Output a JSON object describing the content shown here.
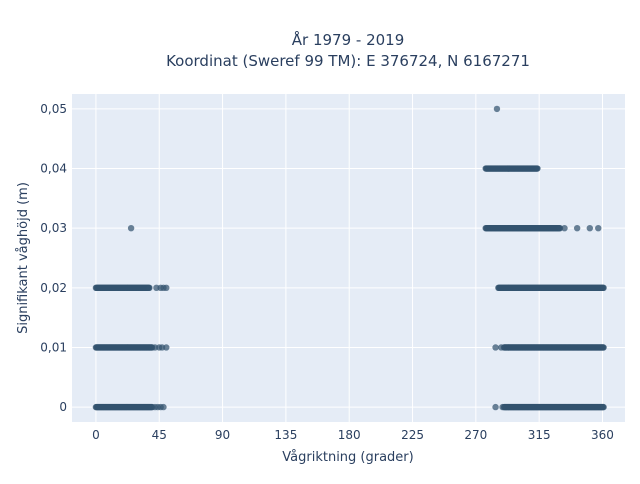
{
  "chart_data": {
    "type": "scatter",
    "title_line1": "År 1979 - 2019",
    "title_line2": "Koordinat (Sweref 99 TM): E 376724, N 6167271",
    "xlabel": "Vågriktning (grader)",
    "ylabel": "Signifikant våghöjd (m)",
    "xlim": [
      -17,
      376
    ],
    "ylim": [
      -0.0025,
      0.0525
    ],
    "x_ticks": [
      0,
      45,
      90,
      135,
      180,
      225,
      270,
      315,
      360
    ],
    "x_tick_labels": [
      "0",
      "45",
      "90",
      "135",
      "180",
      "225",
      "270",
      "315",
      "360"
    ],
    "y_ticks": [
      0,
      0.01,
      0.02,
      0.03,
      0.04,
      0.05
    ],
    "y_tick_labels": [
      "0",
      "0,01",
      "0,02",
      "0,03",
      "0,04",
      "0,05"
    ],
    "grid": true,
    "marker_color": "#33536f",
    "background_color": "#e5ecf6",
    "segments": [
      {
        "y": 0.0,
        "x_start": 0,
        "x_end": 40,
        "sparse": [
          42,
          44,
          46,
          48
        ]
      },
      {
        "y": 0.01,
        "x_start": 0,
        "x_end": 40,
        "sparse": [
          42,
          45,
          47,
          50
        ]
      },
      {
        "y": 0.02,
        "x_start": 0,
        "x_end": 38,
        "sparse": [
          43,
          46,
          48,
          50
        ]
      },
      {
        "y": 0.0,
        "x_start": 290,
        "x_end": 361,
        "sparse": [
          284,
          289
        ]
      },
      {
        "y": 0.01,
        "x_start": 290,
        "x_end": 361,
        "sparse": [
          284,
          288
        ]
      },
      {
        "y": 0.02,
        "x_start": 286,
        "x_end": 361,
        "sparse": []
      },
      {
        "y": 0.03,
        "x_start": 277,
        "x_end": 330,
        "sparse": [
          333,
          342,
          351,
          357
        ]
      },
      {
        "y": 0.04,
        "x_start": 277,
        "x_end": 314,
        "sparse": []
      }
    ],
    "outliers": [
      {
        "x": 25,
        "y": 0.03
      },
      {
        "x": 285,
        "y": 0.05
      }
    ]
  }
}
